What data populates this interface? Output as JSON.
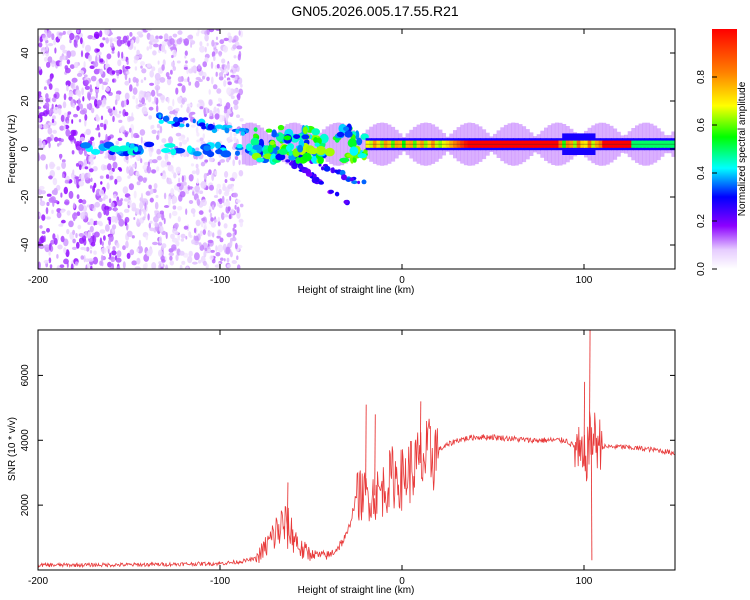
{
  "title": "GN05.2026.005.17.55.R21",
  "colors": {
    "snr_line": "#e83a3a",
    "frame": "#000000",
    "guide_line": "#2b2b2b"
  },
  "chart_data": [
    {
      "id": "spectrogram",
      "type": "heatmap",
      "xlabel": "Height of straight line (km)",
      "ylabel": "Frequency (Hz)",
      "xlim": [
        -200,
        150
      ],
      "ylim": [
        -50,
        50
      ],
      "xticks": [
        -200,
        -100,
        0,
        100
      ],
      "yticks": [
        -40,
        -20,
        0,
        20,
        40
      ],
      "xtick_labels": [
        "-200",
        "-100",
        "0",
        "100"
      ],
      "ytick_labels": [
        "-40",
        "-20",
        "0",
        "20",
        "40"
      ],
      "colorbar": {
        "label": "Normalized spectral amplitude",
        "range": [
          0,
          1
        ],
        "ticks": [
          0,
          0.2,
          0.4,
          0.6,
          0.8
        ],
        "tick_labels": [
          "0.0",
          "0.2",
          "0.4",
          "0.6",
          "0.8"
        ]
      },
      "features": [
        {
          "name": "noise_region",
          "x_range": [
            -200,
            -88
          ],
          "freq_range": [
            -50,
            50
          ],
          "amplitude": 0.15
        },
        {
          "name": "carrier_band",
          "x_range": [
            -80,
            150
          ],
          "freq_hz": 2,
          "peak_amplitude": 1.0
        },
        {
          "name": "upper_streak",
          "x_range": [
            -135,
            -85
          ],
          "freq_hz": 13,
          "amplitude": 0.35
        },
        {
          "name": "lower_tail_1",
          "x_range": [
            -65,
            -30
          ],
          "freq_hz": [
            -3,
            -22
          ],
          "amplitude": 0.25
        },
        {
          "name": "lower_tail_2",
          "x_range": [
            -60,
            -20
          ],
          "freq_hz": [
            -2,
            -15
          ],
          "amplitude": 0.3
        }
      ]
    },
    {
      "id": "snr",
      "type": "line",
      "xlabel": "Height of straight line (km)",
      "ylabel": "SNR (10 * v/v)",
      "xlim": [
        -200,
        150
      ],
      "ylim": [
        0,
        7400
      ],
      "xticks": [
        -200,
        -100,
        0,
        100
      ],
      "yticks": [
        2000,
        4000,
        6000
      ],
      "xtick_labels": [
        "-200",
        "-100",
        "0",
        "100"
      ],
      "ytick_labels": [
        "2000",
        "4000",
        "6000"
      ],
      "series": [
        {
          "name": "SNR",
          "x": [
            -200,
            -150,
            -100,
            -90,
            -80,
            -75,
            -70,
            -65,
            -60,
            -55,
            -50,
            -45,
            -40,
            -35,
            -30,
            -25,
            -20,
            -15,
            -10,
            -5,
            0,
            5,
            10,
            15,
            20,
            30,
            40,
            50,
            60,
            70,
            80,
            90,
            95,
            100,
            103,
            105,
            110,
            120,
            130,
            140,
            150
          ],
          "y": [
            150,
            160,
            200,
            250,
            350,
            700,
            1100,
            1400,
            1100,
            600,
            500,
            450,
            450,
            700,
            1100,
            2300,
            2300,
            2300,
            2500,
            2900,
            2800,
            3100,
            3300,
            3500,
            3700,
            4000,
            4100,
            4100,
            4050,
            4000,
            4000,
            4000,
            3800,
            3200,
            4000,
            4100,
            3800,
            3800,
            3750,
            3700,
            3600
          ]
        }
      ],
      "spikes": [
        {
          "x": -63,
          "y": 2700
        },
        {
          "x": -20,
          "y": 5100
        },
        {
          "x": -15,
          "y": 4800
        },
        {
          "x": 10,
          "y": 5200
        },
        {
          "x": 100,
          "y": 5800
        },
        {
          "x": 103,
          "y": 7400
        },
        {
          "x": 104,
          "y": 300
        }
      ]
    }
  ]
}
